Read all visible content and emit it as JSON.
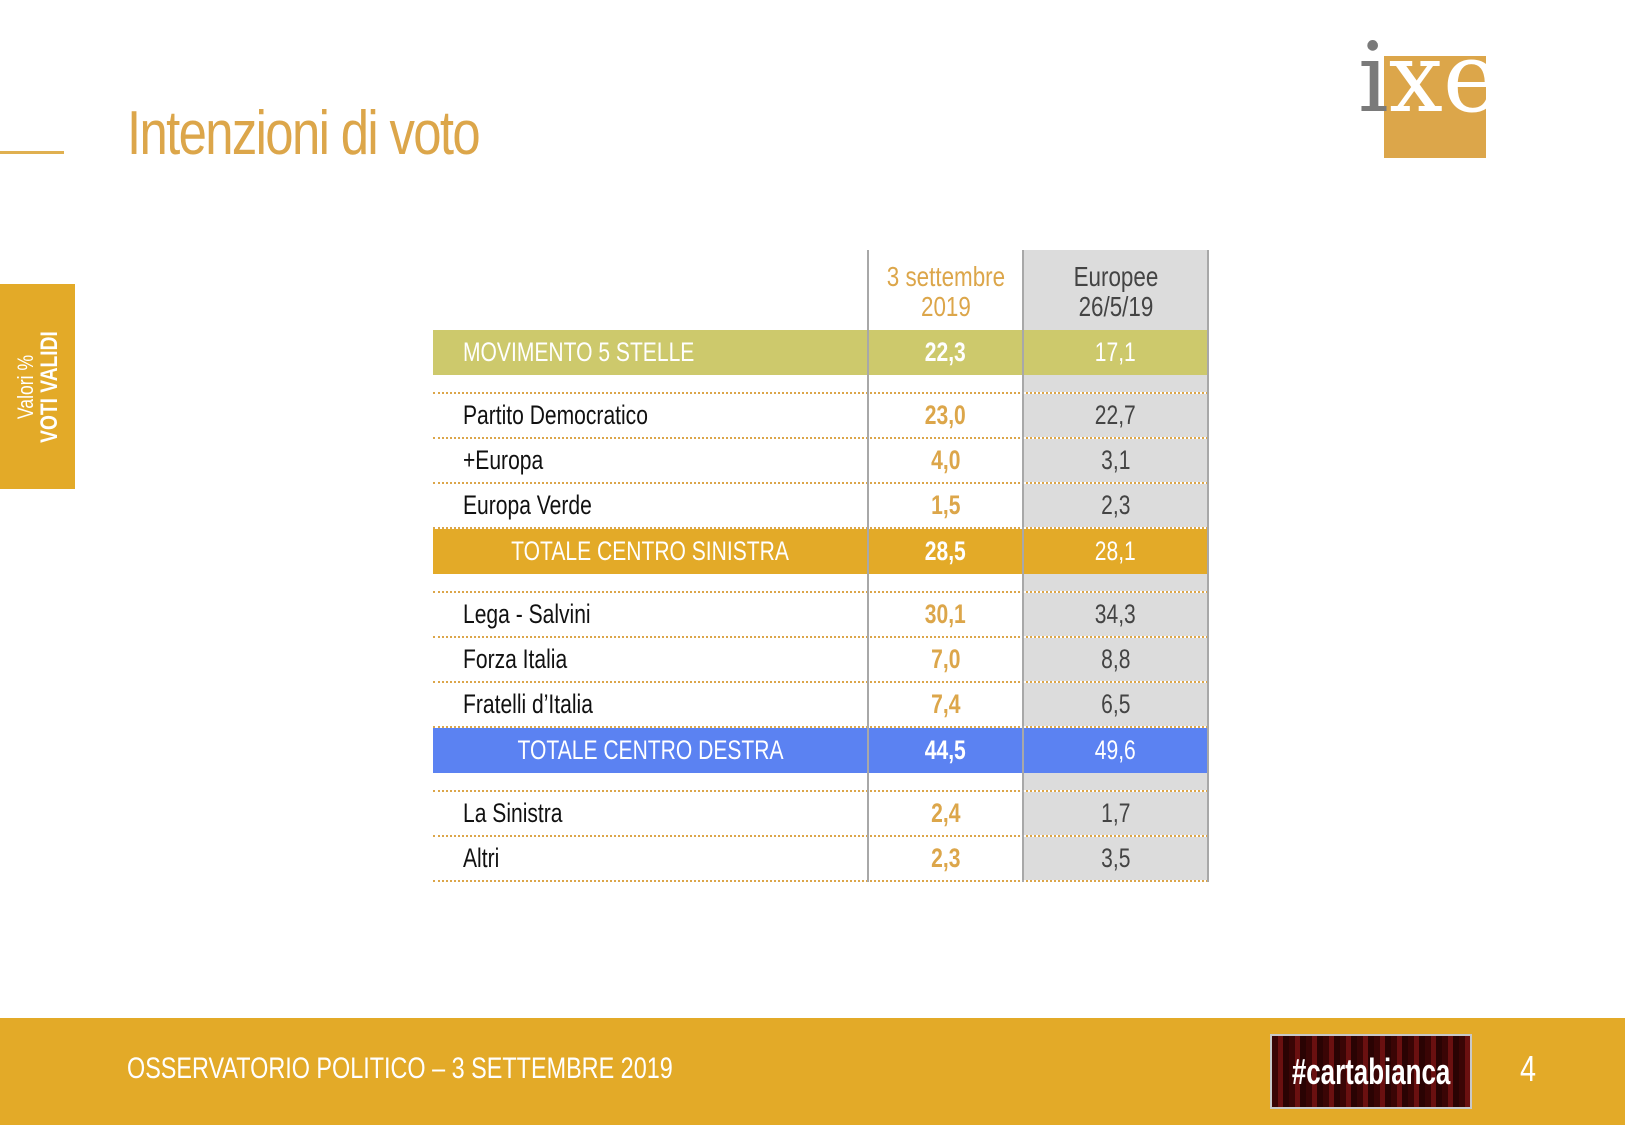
{
  "header": {
    "title": "Intenzioni di voto"
  },
  "logo": {
    "letters": [
      "i",
      "x",
      "è"
    ]
  },
  "side_tab": {
    "line1": "Valori %",
    "line2": "VOTI VALIDI"
  },
  "table": {
    "columns": [
      "3 settembre 2019",
      "Europee 26/5/19"
    ],
    "column_lines": [
      [
        "3 settembre",
        "2019"
      ],
      [
        "Europee",
        "26/5/19"
      ]
    ],
    "rows": [
      {
        "label": "MOVIMENTO 5 STELLE",
        "sep2019": "22,3",
        "europee": "17,1",
        "style": "m5s"
      },
      {
        "label": "Partito Democratico",
        "sep2019": "23,0",
        "europee": "22,7"
      },
      {
        "label": "+Europa",
        "sep2019": "4,0",
        "europee": "3,1"
      },
      {
        "label": "Europa Verde",
        "sep2019": "1,5",
        "europee": "2,3"
      },
      {
        "label": "TOTALE CENTRO SINISTRA",
        "sep2019": "28,5",
        "europee": "28,1",
        "style": "cs"
      },
      {
        "label": "Lega - Salvini",
        "sep2019": "30,1",
        "europee": "34,3"
      },
      {
        "label": "Forza Italia",
        "sep2019": "7,0",
        "europee": "8,8"
      },
      {
        "label": "Fratelli d’Italia",
        "sep2019": "7,4",
        "europee": "6,5"
      },
      {
        "label": "TOTALE CENTRO DESTRA",
        "sep2019": "44,5",
        "europee": "49,6",
        "style": "cd"
      },
      {
        "label": "La Sinistra",
        "sep2019": "2,4",
        "europee": "1,7"
      },
      {
        "label": "Altri",
        "sep2019": "2,3",
        "europee": "3,5"
      }
    ]
  },
  "colors": {
    "accent": "#dca64a",
    "m5s_band": "#cdc96c",
    "centro_sinistra_band": "#e3aa28",
    "centro_destra_band": "#5b82f2",
    "footer": "#e3aa28"
  },
  "footer": {
    "text": "OSSERVATORIO POLITICO – 3 SETTEMBRE 2019",
    "hashtag": "#cartabianca",
    "page": "4"
  }
}
